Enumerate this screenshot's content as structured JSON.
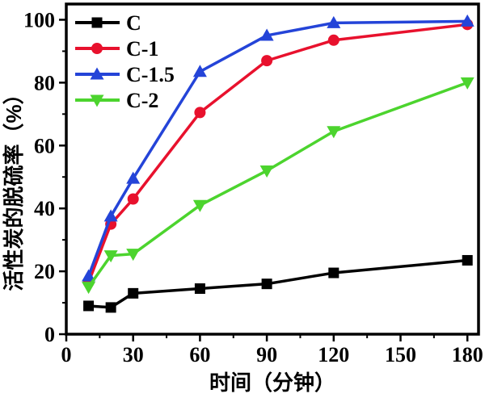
{
  "figure": {
    "background": "#ffffff",
    "axis_color": "#000000"
  },
  "chart_data": {
    "type": "line",
    "title": "",
    "xlabel": "时间（分钟）",
    "ylabel": "活性炭的脱硫率（%）",
    "x": [
      10,
      20,
      30,
      60,
      90,
      120,
      180
    ],
    "series": [
      {
        "name": "C",
        "color": "#000000",
        "marker": "square",
        "values": [
          9,
          8.5,
          13,
          14.5,
          16,
          19.5,
          23.5
        ]
      },
      {
        "name": "C-1",
        "color": "#e8112d",
        "marker": "circle",
        "values": [
          16.5,
          35,
          43,
          70.5,
          87,
          93.5,
          98.5
        ]
      },
      {
        "name": "C-1.5",
        "color": "#2444d8",
        "marker": "triangle-up",
        "values": [
          18.5,
          37.5,
          49.5,
          83.5,
          95,
          99,
          99.5
        ]
      },
      {
        "name": "C-2",
        "color": "#4cd42e",
        "marker": "triangle-down",
        "values": [
          15,
          25,
          25.5,
          41,
          52,
          64.5,
          80
        ]
      }
    ],
    "xlim": [
      0,
      185
    ],
    "ylim": [
      0,
      105
    ],
    "x_major_ticks": [
      0,
      30,
      60,
      90,
      120,
      150,
      180
    ],
    "x_minor_ticks": [
      15,
      45,
      75,
      105,
      135,
      165
    ],
    "y_major_ticks": [
      0,
      20,
      40,
      60,
      80,
      100
    ],
    "y_minor_ticks": [
      10,
      30,
      50,
      70,
      90
    ],
    "grid": false,
    "legend_position": "upper-left"
  }
}
